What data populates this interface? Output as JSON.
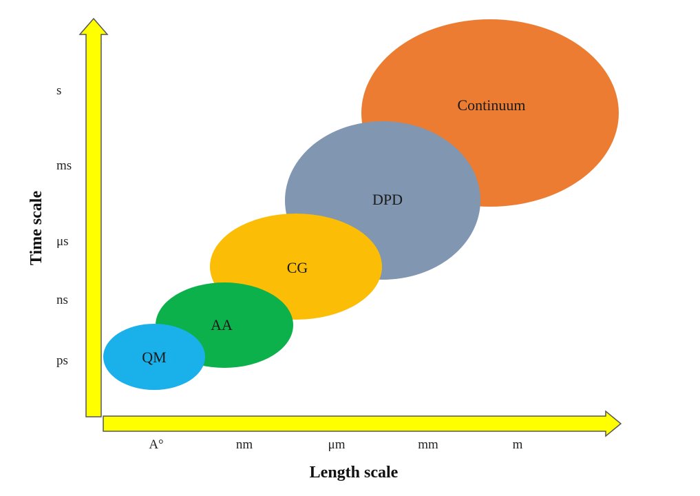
{
  "x_axis": {
    "title": "Length scale",
    "ticks": [
      "A°",
      "nm",
      "μm",
      "mm",
      "m"
    ]
  },
  "y_axis": {
    "title": "Time scale",
    "ticks": [
      "ps",
      "ns",
      "μs",
      "ms",
      "s"
    ]
  },
  "regions": [
    {
      "label": "QM",
      "color": "#1ab0ea"
    },
    {
      "label": "AA",
      "color": "#0db14b"
    },
    {
      "label": "CG",
      "color": "#fbbd05"
    },
    {
      "label": "DPD",
      "color": "#8096b1"
    },
    {
      "label": "Continuum",
      "color": "#ec7c32"
    }
  ],
  "colors": {
    "arrow_fill": "#ffff00",
    "arrow_stroke": "#555555"
  }
}
